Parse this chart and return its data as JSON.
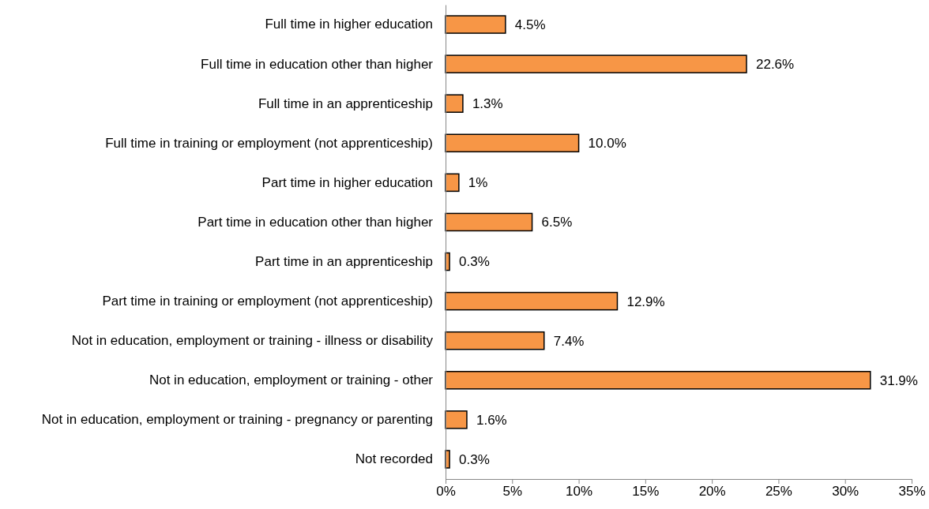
{
  "chart_data": {
    "type": "bar",
    "orientation": "horizontal",
    "categories": [
      "Full time in higher education",
      "Full time in education other than higher",
      "Full time in an apprenticeship",
      "Full time in training or employment (not apprenticeship)",
      "Part time in higher education",
      "Part time in education other than higher",
      "Part time in an apprenticeship",
      "Part time in training or employment (not apprenticeship)",
      "Not in education, employment or training - illness or disability",
      "Not in education, employment or training - other",
      "Not in education, employment or training - pregnancy or parenting",
      "Not recorded"
    ],
    "values": [
      4.5,
      22.6,
      1.3,
      10.0,
      1,
      6.5,
      0.3,
      12.9,
      7.4,
      31.9,
      1.6,
      0.3
    ],
    "value_labels": [
      "4.5%",
      "22.6%",
      "1.3%",
      "10.0%",
      "1%",
      "6.5%",
      "0.3%",
      "12.9%",
      "7.4%",
      "31.9%",
      "1.6%",
      "0.3%"
    ],
    "color": "#f79646",
    "xlim": [
      0,
      35
    ],
    "xticks": [
      {
        "value": 0,
        "label": "0%"
      },
      {
        "value": 5,
        "label": "5%"
      },
      {
        "value": 10,
        "label": "10%"
      },
      {
        "value": 15,
        "label": "15%"
      },
      {
        "value": 20,
        "label": "20%"
      },
      {
        "value": 25,
        "label": "25%"
      },
      {
        "value": 30,
        "label": "30%"
      },
      {
        "value": 35,
        "label": "35%"
      }
    ],
    "grid": false
  }
}
